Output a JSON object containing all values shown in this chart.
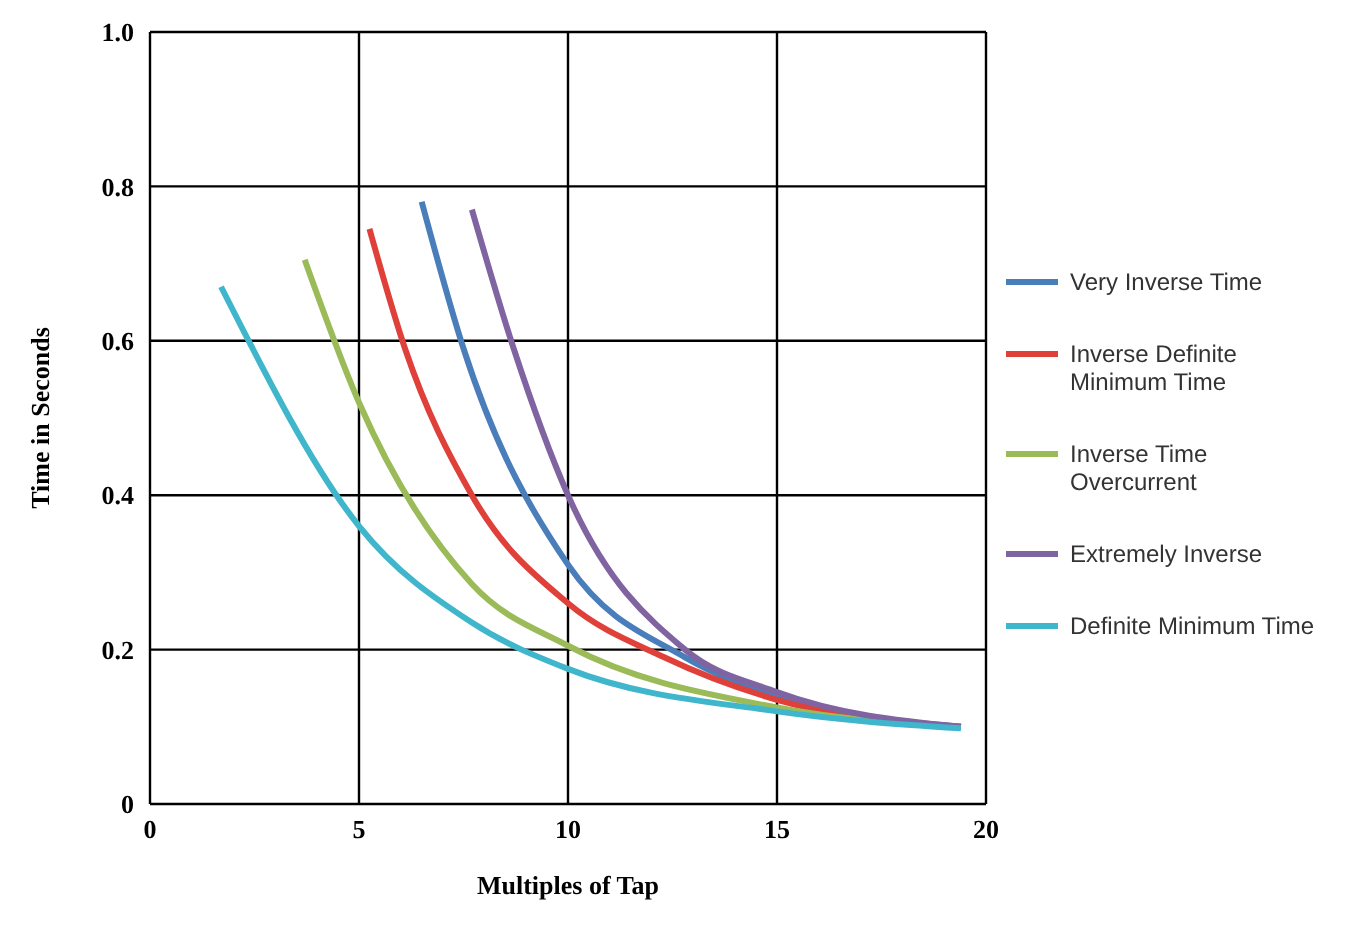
{
  "chart_data": {
    "type": "line",
    "xlabel": "Multiples of Tap",
    "ylabel": "Time in Seconds",
    "xlim": [
      0,
      20
    ],
    "xticks": [
      0,
      5,
      10,
      15,
      20
    ],
    "ylim": [
      0,
      1
    ],
    "yticks": [
      {
        "value": 0,
        "label": "0"
      },
      {
        "value": 0.2,
        "label": "0.2"
      },
      {
        "value": 0.4,
        "label": "0.4"
      },
      {
        "value": 0.6,
        "label": "0.6"
      },
      {
        "value": 0.8,
        "label": "0.8"
      },
      {
        "value": 1,
        "label": "1.0"
      }
    ],
    "grid": true,
    "legend": "right",
    "marker": "none",
    "line_style": "solid",
    "series": [
      {
        "name": "Very Inverse Time",
        "color": "#4a7ebb",
        "x": [
          6.5,
          7.5,
          10,
          12.8,
          15,
          19.4
        ],
        "values": [
          0.78,
          0.59,
          0.31,
          0.19,
          0.14,
          0.1
        ]
      },
      {
        "name": "Inverse Definite Minimum Time",
        "color": "#e0403a",
        "x": [
          5.25,
          6.1,
          7.7,
          10,
          12.3,
          15,
          19.4
        ],
        "values": [
          0.745,
          0.59,
          0.4,
          0.26,
          0.19,
          0.135,
          0.1
        ]
      },
      {
        "name": "Inverse Time Overcurrent",
        "color": "#9bbb59",
        "x": [
          3.7,
          5,
          7.7,
          10,
          15,
          19.4
        ],
        "values": [
          0.705,
          0.52,
          0.285,
          0.205,
          0.125,
          0.1
        ]
      },
      {
        "name": "Extremely Inverse",
        "color": "#8064a2",
        "x": [
          7.7,
          8.7,
          10,
          12.8,
          15,
          19.4
        ],
        "values": [
          0.77,
          0.59,
          0.4,
          0.2,
          0.145,
          0.1
        ]
      },
      {
        "name": "Definite Minimum Time",
        "color": "#3fb6cc",
        "x": [
          1.7,
          5,
          7.7,
          10,
          15,
          19.4
        ],
        "values": [
          0.67,
          0.36,
          0.235,
          0.175,
          0.12,
          0.098
        ]
      }
    ]
  }
}
